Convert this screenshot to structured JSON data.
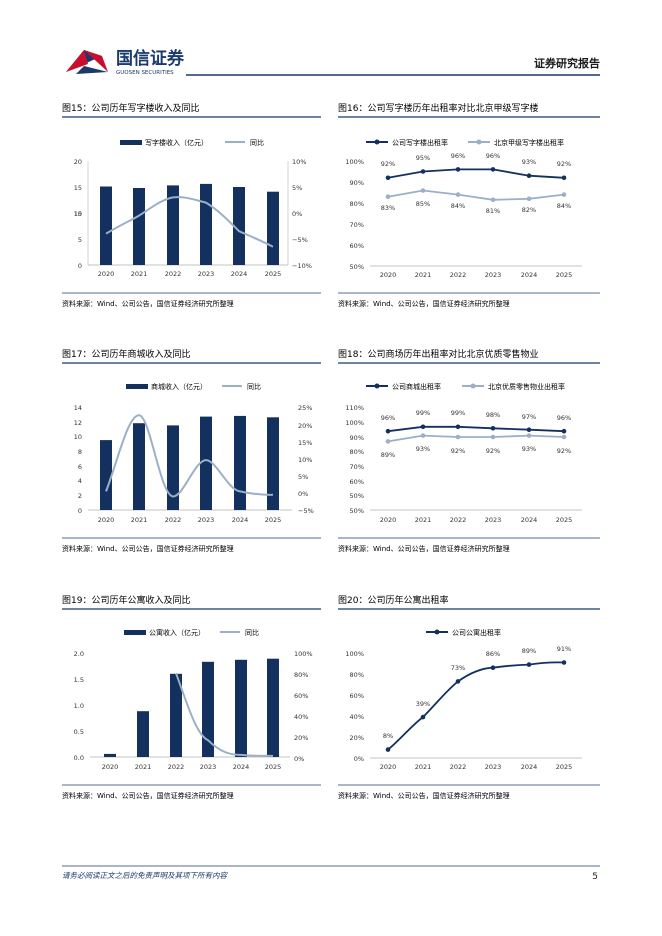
{
  "header": {
    "brand_cn": "国信证券",
    "brand_en": "GUOSEN SECURITIES",
    "report_type": "证券研究报告"
  },
  "charts": [
    {
      "title": "图15：公司历年写字楼收入及同比",
      "source": "资料来源：Wind、公司公告，国信证券经济研究所整理"
    },
    {
      "title": "图16：公司写字楼历年出租率对比北京甲级写字楼",
      "source": "资料来源：Wind、公司公告，国信证券经济研究所整理"
    },
    {
      "title": "图17：公司历年商城收入及同比",
      "source": "资料来源：Wind、公司公告，国信证券经济研究所整理"
    },
    {
      "title": "图18：公司商场历年出租率对比北京优质零售物业",
      "source": "资料来源：Wind、公司公告，国信证券经济研究所整理"
    },
    {
      "title": "图19：公司历年公寓收入及同比",
      "source": "资料来源：Wind、公司公告，国信证券经济研究所整理"
    },
    {
      "title": "图20：公司历年公寓出租率",
      "source": "资料来源：Wind、公司公告，国信证券经济研究所整理"
    }
  ],
  "chart_data": [
    {
      "type": "bar",
      "categories": [
        "2020",
        "2021",
        "2022",
        "2023",
        "2024",
        "2025"
      ],
      "series": [
        {
          "name": "写字楼收入（亿元）",
          "values": [
            15.1,
            14.8,
            15.3,
            15.6,
            15.0,
            14.1
          ]
        },
        {
          "name": "同比",
          "type": "line",
          "values": [
            -4.0,
            -0.5,
            3.0,
            2.0,
            -3.5,
            -6.5
          ]
        }
      ],
      "ylim": [
        0,
        20
      ],
      "y2lim": [
        -10,
        10
      ]
    },
    {
      "type": "line",
      "categories": [
        "2020",
        "2021",
        "2022",
        "2023",
        "2024",
        "2025"
      ],
      "series": [
        {
          "name": "公司写字楼出租率",
          "values": [
            92,
            95,
            96,
            96,
            93,
            92
          ],
          "labels": [
            "92%",
            "95%",
            "96%",
            "96%",
            "93%",
            "92%"
          ]
        },
        {
          "name": "北京甲级写字楼出租率",
          "values": [
            83,
            85,
            84,
            81,
            82,
            84
          ],
          "labels": [
            "83%",
            "85%",
            "84%",
            "81%",
            "82%",
            "84%"
          ]
        }
      ],
      "ylim": [
        50,
        100
      ]
    },
    {
      "type": "bar",
      "categories": [
        "2020",
        "2021",
        "2022",
        "2023",
        "2024",
        "2025"
      ],
      "series": [
        {
          "name": "商城收入（亿元）",
          "values": [
            9.5,
            11.8,
            11.5,
            12.7,
            12.8,
            12.6
          ]
        },
        {
          "name": "同比",
          "type": "line",
          "values": [
            0.5,
            22.5,
            -1,
            9.5,
            0.5,
            -0.5
          ]
        }
      ],
      "ylim": [
        0,
        14
      ],
      "y2lim": [
        -5,
        25
      ]
    },
    {
      "type": "line",
      "categories": [
        "2020",
        "2021",
        "2022",
        "2023",
        "2024",
        "2025"
      ],
      "series": [
        {
          "name": "公司商城出租率",
          "values": [
            96,
            99,
            99,
            98,
            97,
            96
          ],
          "labels": [
            "96%",
            "99%",
            "99%",
            "98%",
            "97%",
            "96%"
          ]
        },
        {
          "name": "北京优质零售物业出租率",
          "values": [
            89,
            93,
            92,
            92,
            93,
            92
          ],
          "labels": [
            "89%",
            "93%",
            "92%",
            "92%",
            "93%",
            "92%"
          ]
        }
      ],
      "ylim": [
        50,
        110
      ]
    },
    {
      "type": "bar",
      "categories": [
        "2020",
        "2021",
        "2022",
        "2023",
        "2024",
        "2025"
      ],
      "series": [
        {
          "name": "公寓收入（亿元）",
          "values": [
            0.06,
            0.88,
            1.6,
            1.83,
            1.87,
            1.89
          ]
        },
        {
          "name": "同比",
          "type": "line",
          "values": [
            null,
            null,
            80,
            16,
            2,
            1
          ]
        }
      ],
      "ylim": [
        0,
        2.0
      ],
      "y2lim": [
        0,
        100
      ]
    },
    {
      "type": "line",
      "categories": [
        "2020",
        "2021",
        "2022",
        "2023",
        "2024",
        "2025"
      ],
      "series": [
        {
          "name": "公司公寓出租率",
          "values": [
            8,
            39,
            73,
            86,
            89,
            91
          ],
          "labels": [
            "8%",
            "39%",
            "73%",
            "86%",
            "89%",
            "91%"
          ]
        }
      ],
      "ylim": [
        0,
        100
      ]
    }
  ],
  "footer": {
    "disclaimer": "请务必阅读正文之后的免责声明及其项下所有内容",
    "page_number": "5"
  }
}
